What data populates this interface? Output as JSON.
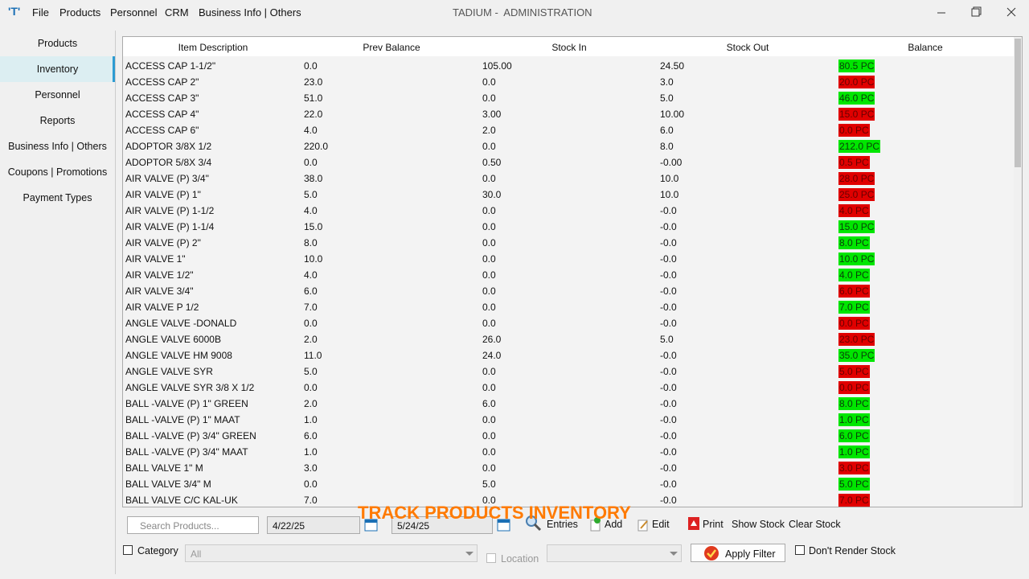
{
  "menu": {
    "items": [
      "File",
      "Products",
      "Personnel",
      "CRM",
      "Business Info | Others"
    ]
  },
  "header": {
    "title": "TADIUM -  ADMINISTRATION"
  },
  "sidebar": {
    "items": [
      "Products",
      "Inventory",
      "Personnel",
      "Reports",
      "Business Info | Others",
      "Coupons | Promotions",
      "Payment Types"
    ],
    "selected": 1
  },
  "table": {
    "columns": [
      "Item Description",
      "Prev Balance",
      "Stock In",
      "Stock Out",
      "Balance"
    ],
    "rows": [
      {
        "cells": [
          "ACCESS CAP 1-1/2\"",
          "0.0",
          "105.00",
          "24.50",
          "80.5 PC"
        ],
        "balance_color": "#00e600"
      },
      {
        "cells": [
          "ACCESS CAP 2\"",
          "23.0",
          "0.0",
          "3.0",
          "20.0 PC"
        ],
        "balance_color": "#e00000"
      },
      {
        "cells": [
          "ACCESS CAP 3\"",
          "51.0",
          "0.0",
          "5.0",
          "46.0 PC"
        ],
        "balance_color": "#00e600"
      },
      {
        "cells": [
          "ACCESS CAP 4\"",
          "22.0",
          "3.00",
          "10.00",
          "15.0 PC"
        ],
        "balance_color": "#e00000"
      },
      {
        "cells": [
          "ACCESS CAP 6\"",
          "4.0",
          "2.0",
          "6.0",
          "0.0 PC"
        ],
        "balance_color": "#e00000"
      },
      {
        "cells": [
          "ADOPTOR 3/8X 1/2",
          "220.0",
          "0.0",
          "8.0",
          "212.0 PC"
        ],
        "balance_color": "#00e600"
      },
      {
        "cells": [
          "ADOPTOR 5/8X 3/4",
          "0.0",
          "0.50",
          "-0.00",
          "0.5 PC"
        ],
        "balance_color": "#e00000"
      },
      {
        "cells": [
          "AIR VALVE  (P) 3/4\"",
          "38.0",
          "0.0",
          "10.0",
          "28.0 PC"
        ],
        "balance_color": "#e00000"
      },
      {
        "cells": [
          "AIR VALVE (P) 1\"",
          "5.0",
          "30.0",
          "10.0",
          "25.0 PC"
        ],
        "balance_color": "#e00000"
      },
      {
        "cells": [
          "AIR VALVE (P) 1-1/2",
          "4.0",
          "0.0",
          "-0.0",
          "4.0 PC"
        ],
        "balance_color": "#e00000"
      },
      {
        "cells": [
          "AIR VALVE (P) 1-1/4",
          "15.0",
          "0.0",
          "-0.0",
          "15.0 PC"
        ],
        "balance_color": "#00e600"
      },
      {
        "cells": [
          "AIR VALVE (P) 2\"",
          "8.0",
          "0.0",
          "-0.0",
          "8.0 PC"
        ],
        "balance_color": "#00e600"
      },
      {
        "cells": [
          "AIR VALVE 1\"",
          "10.0",
          "0.0",
          "-0.0",
          "10.0 PC"
        ],
        "balance_color": "#00e600"
      },
      {
        "cells": [
          "AIR VALVE 1/2\"",
          "4.0",
          "0.0",
          "-0.0",
          "4.0 PC"
        ],
        "balance_color": "#00e600"
      },
      {
        "cells": [
          "AIR VALVE 3/4\"",
          "6.0",
          "0.0",
          "-0.0",
          "6.0 PC"
        ],
        "balance_color": "#e00000"
      },
      {
        "cells": [
          "AIR VALVE P 1/2",
          "7.0",
          "0.0",
          "-0.0",
          "7.0 PC"
        ],
        "balance_color": "#00e600"
      },
      {
        "cells": [
          "ANGLE VALVE -DONALD",
          "0.0",
          "0.0",
          "-0.0",
          "0.0 PC"
        ],
        "balance_color": "#e00000"
      },
      {
        "cells": [
          "ANGLE VALVE 6000B",
          "2.0",
          "26.0",
          "5.0",
          "23.0 PC"
        ],
        "balance_color": "#e00000"
      },
      {
        "cells": [
          "ANGLE VALVE HM 9008",
          "11.0",
          "24.0",
          "-0.0",
          "35.0 PC"
        ],
        "balance_color": "#00e600"
      },
      {
        "cells": [
          "ANGLE VALVE SYR",
          "5.0",
          "0.0",
          "-0.0",
          "5.0 PC"
        ],
        "balance_color": "#e00000"
      },
      {
        "cells": [
          "ANGLE VALVE SYR 3/8 X 1/2",
          "0.0",
          "0.0",
          "-0.0",
          "0.0 PC"
        ],
        "balance_color": "#e00000"
      },
      {
        "cells": [
          "BALL -VALVE (P) 1\" GREEN",
          "2.0",
          "6.0",
          "-0.0",
          "8.0 PC"
        ],
        "balance_color": "#00e600"
      },
      {
        "cells": [
          "BALL -VALVE (P) 1\" MAAT",
          "1.0",
          "0.0",
          "-0.0",
          "1.0 PC"
        ],
        "balance_color": "#00e600"
      },
      {
        "cells": [
          "BALL -VALVE (P) 3/4\" GREEN",
          "6.0",
          "0.0",
          "-0.0",
          "6.0 PC"
        ],
        "balance_color": "#00e600"
      },
      {
        "cells": [
          "BALL -VALVE (P) 3/4\" MAAT",
          "1.0",
          "0.0",
          "-0.0",
          "1.0 PC"
        ],
        "balance_color": "#00e600"
      },
      {
        "cells": [
          "BALL VALVE 1\" M",
          "3.0",
          "0.0",
          "-0.0",
          "3.0 PC"
        ],
        "balance_color": "#e00000"
      },
      {
        "cells": [
          "BALL VALVE 3/4\" M",
          "0.0",
          "5.0",
          "-0.0",
          "5.0 PC"
        ],
        "balance_color": "#00e600"
      },
      {
        "cells": [
          "BALL VALVE C/C KAL-UK",
          "7.0",
          "0.0",
          "-0.0",
          "7.0 PC"
        ],
        "balance_color": "#e00000"
      }
    ]
  },
  "footer": {
    "search_placeholder": "Search Products...",
    "date_from": "4/22/25",
    "date_to": "5/24/25",
    "entries": "Entries",
    "add": "Add",
    "edit": "Edit",
    "print": "Print",
    "show_stock": "Show Stock",
    "clear_stock": "Clear Stock",
    "category": "Category",
    "category_value": "All",
    "location": "Location",
    "apply_filter": "Apply Filter",
    "dont_render": "Don't Render Stock"
  },
  "overlay": {
    "caption": "TRACK PRODUCTS INVENTORY"
  }
}
